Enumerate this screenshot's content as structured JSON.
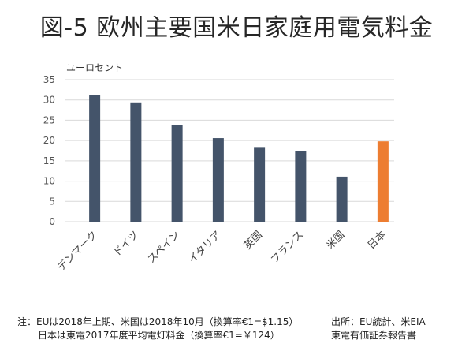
{
  "title": "図-5 欧州主要国米日家庭用電気料金",
  "chart_data": {
    "type": "bar",
    "title": "図-5 欧州主要国米日家庭用電気料金",
    "ylabel": "ユーロセント",
    "xlabel": "",
    "categories": [
      "デンマーク",
      "ドイツ",
      "スペイン",
      "イタリア",
      "英国",
      "フランス",
      "米国",
      "日本"
    ],
    "values": [
      31.2,
      29.4,
      23.8,
      20.6,
      18.4,
      17.5,
      11.1,
      19.8
    ],
    "highlight": [
      false,
      false,
      false,
      false,
      false,
      false,
      false,
      true
    ],
    "ylim": [
      0,
      35
    ],
    "yticks": [
      0,
      5,
      10,
      15,
      20,
      25,
      30,
      35
    ],
    "grid": true,
    "colors": {
      "default": "#44546a",
      "highlight": "#ed7d31"
    }
  },
  "notes": {
    "left_line1": "注：EUは2018年上期、米国は2018年10月（換算率€1=$1.15）",
    "left_line2": "日本は東電2017年度平均電灯料金（換算率€1=￥124）",
    "right_line1": "出所：EU統計、米EIA",
    "right_line2": "東電有価証券報告書"
  }
}
